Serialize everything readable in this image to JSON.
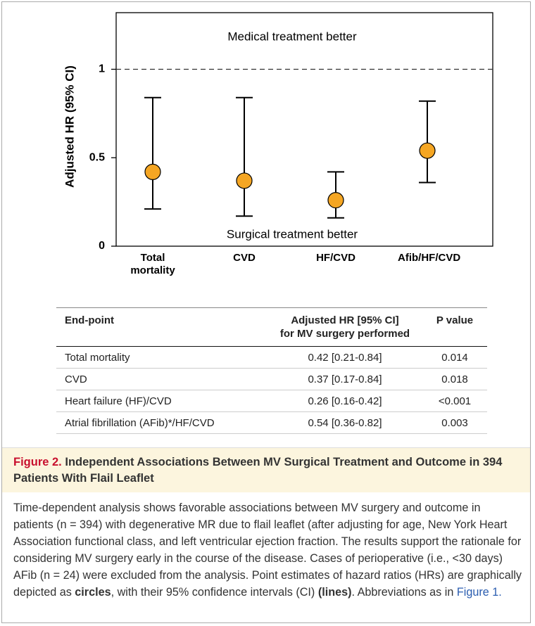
{
  "chart_data": {
    "type": "errorbar",
    "ylabel": "Adjusted HR (95% CI)",
    "annotations": [
      "Medical treatment better",
      "Surgical treatment better"
    ],
    "categories": [
      "Total mortality",
      "CVD",
      "HF/CVD",
      "Afib/HF/CVD"
    ],
    "values": [
      0.42,
      0.37,
      0.26,
      0.54
    ],
    "lower": [
      0.21,
      0.17,
      0.16,
      0.36
    ],
    "upper": [
      0.84,
      0.84,
      0.42,
      0.82
    ],
    "reference_line": 1,
    "color": "#f5a623",
    "ylim": [
      0,
      1.32
    ],
    "yticks": [
      0,
      0.5,
      1
    ]
  },
  "table": {
    "header": [
      "End-point",
      [
        "Adjusted HR [95% CI]",
        "for MV surgery performed"
      ],
      "P value"
    ],
    "rows": [
      [
        "Total mortality",
        "0.42 [0.21-0.84]",
        "0.014"
      ],
      [
        "CVD",
        "0.37 [0.17-0.84]",
        "0.018"
      ],
      [
        "Heart failure (HF)/CVD",
        "0.26 [0.16-0.42]",
        "<0.001"
      ],
      [
        "Atrial fibrillation (AFib)*/HF/CVD",
        "0.54 [0.36-0.82]",
        "0.003"
      ]
    ]
  },
  "caption": {
    "label": "Figure 2.",
    "title": "Independent Associations Between MV Surgical Treatment and Outcome in 394 Patients With Flail Leaflet",
    "body": [
      "Time-dependent analysis shows favorable associations between MV surgery and outcome in patients (n = 394) with degenerative MR due to flail leaflet (after adjusting for age, New York Heart Association functional class, and left ventricular ejection fraction. The results support the rationale for considering MV surgery early in the course of the disease. Cases of perioperative (i.e., <30 days) AFib (n = 24) were excluded from the analysis. Point estimates of hazard ratios (HRs) are graphically depicted as ",
      "circles",
      ", with their 95% confidence intervals (CI) ",
      "(lines)",
      ". Abbreviations as in ",
      "Figure 1",
      "."
    ]
  }
}
